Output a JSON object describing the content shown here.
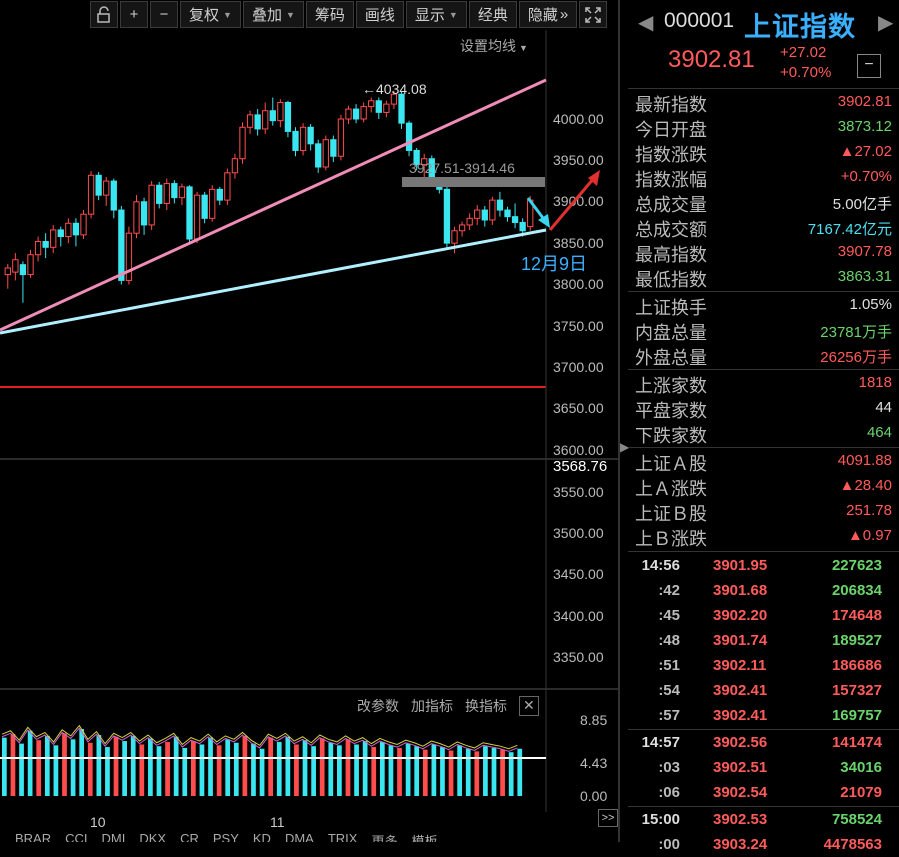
{
  "toolbar": {
    "lock_icon": "lock-icon",
    "plus": "+",
    "minus": "−",
    "restore_right": "复权",
    "overlay": "叠加",
    "chips": "筹码",
    "draw_line": "画线",
    "display": "显示",
    "classic": "经典",
    "hide": "隐藏",
    "hide_arrows": "»",
    "fullscreen_icon": "fullscreen-icon"
  },
  "chart": {
    "settings_ma": "设置均线",
    "peak_label": "←4034.08",
    "range_label": "3927.51-3914.46",
    "date_annotation": "12月9日",
    "price_ticks": [
      "4000.00",
      "3950.00",
      "3900.00",
      "3850.00",
      "3800.00",
      "3750.00",
      "3700.00",
      "3650.00",
      "3600.00",
      "3568.76",
      "3550.00",
      "3500.00",
      "3450.00",
      "3400.00",
      "3350.00"
    ],
    "month_labels": [
      "10",
      "11"
    ],
    "indicator_ticks": [
      "8.85",
      "4.43",
      "0.00"
    ],
    "indicator_buttons": [
      "改参数",
      "加指标",
      "换指标"
    ],
    "indicator_close": "✕",
    "bottom_tabs": [
      "BRAR",
      "CCI",
      "DMI",
      "DKX",
      "CR",
      "PSY",
      "KD",
      "DMA",
      "TRIX",
      "更多",
      "模板"
    ],
    "scroll_arrow": ">>"
  },
  "chart_data": {
    "type": "candlestick",
    "ylim": [
      3330,
      4060
    ],
    "candles": [
      [
        3812,
        3820,
        3795,
        3825
      ],
      [
        3815,
        3830,
        3805,
        3838
      ],
      [
        3824,
        3812,
        3778,
        3828
      ],
      [
        3812,
        3836,
        3808,
        3842
      ],
      [
        3836,
        3852,
        3828,
        3858
      ],
      [
        3852,
        3845,
        3832,
        3862
      ],
      [
        3845,
        3866,
        3838,
        3872
      ],
      [
        3866,
        3858,
        3846,
        3870
      ],
      [
        3858,
        3874,
        3850,
        3880
      ],
      [
        3874,
        3860,
        3846,
        3880
      ],
      [
        3860,
        3885,
        3855,
        3890
      ],
      [
        3885,
        3932,
        3880,
        3937
      ],
      [
        3932,
        3908,
        3902,
        3936
      ],
      [
        3908,
        3925,
        3895,
        3930
      ],
      [
        3925,
        3890,
        3880,
        3928
      ],
      [
        3890,
        3805,
        3800,
        3895
      ],
      [
        3805,
        3862,
        3800,
        3870
      ],
      [
        3862,
        3900,
        3856,
        3908
      ],
      [
        3900,
        3872,
        3860,
        3905
      ],
      [
        3872,
        3920,
        3866,
        3925
      ],
      [
        3920,
        3898,
        3892,
        3924
      ],
      [
        3898,
        3922,
        3890,
        3928
      ],
      [
        3922,
        3905,
        3898,
        3926
      ],
      [
        3905,
        3918,
        3896,
        3922
      ],
      [
        3918,
        3855,
        3850,
        3920
      ],
      [
        3855,
        3908,
        3850,
        3912
      ],
      [
        3908,
        3880,
        3874,
        3912
      ],
      [
        3880,
        3915,
        3876,
        3920
      ],
      [
        3915,
        3902,
        3896,
        3918
      ],
      [
        3902,
        3935,
        3896,
        3940
      ],
      [
        3935,
        3952,
        3928,
        3958
      ],
      [
        3952,
        3990,
        3946,
        3996
      ],
      [
        3990,
        4005,
        3982,
        4010
      ],
      [
        4005,
        3988,
        3980,
        4012
      ],
      [
        3988,
        4010,
        3982,
        4020
      ],
      [
        4010,
        3998,
        3992,
        4026
      ],
      [
        3998,
        4020,
        3990,
        4024
      ],
      [
        4020,
        3985,
        3978,
        4022
      ],
      [
        3985,
        3962,
        3955,
        3990
      ],
      [
        3962,
        3990,
        3956,
        3995
      ],
      [
        3990,
        3970,
        3962,
        3994
      ],
      [
        3970,
        3942,
        3935,
        3975
      ],
      [
        3942,
        3975,
        3938,
        3980
      ],
      [
        3975,
        3955,
        3948,
        3980
      ],
      [
        3955,
        4000,
        3950,
        4005
      ],
      [
        4000,
        4012,
        3994,
        4016
      ],
      [
        4012,
        4000,
        3995,
        4018
      ],
      [
        4000,
        4015,
        3996,
        4020
      ],
      [
        4015,
        4022,
        4008,
        4026
      ],
      [
        4022,
        4008,
        4000,
        4026
      ],
      [
        4008,
        4018,
        4002,
        4022
      ],
      [
        4018,
        4030,
        4012,
        4034
      ],
      [
        4030,
        3995,
        3988,
        4034
      ],
      [
        3995,
        3962,
        3955,
        3998
      ],
      [
        3962,
        3945,
        3938,
        3965
      ],
      [
        3945,
        3952,
        3930,
        3958
      ],
      [
        3952,
        3928,
        3920,
        3956
      ],
      [
        3928,
        3915,
        3910,
        3930
      ],
      [
        3915,
        3850,
        3842,
        3918
      ],
      [
        3850,
        3865,
        3838,
        3870
      ],
      [
        3865,
        3872,
        3858,
        3876
      ],
      [
        3872,
        3880,
        3866,
        3886
      ],
      [
        3880,
        3890,
        3872,
        3896
      ],
      [
        3890,
        3878,
        3870,
        3895
      ],
      [
        3878,
        3902,
        3872,
        3906
      ],
      [
        3902,
        3890,
        3882,
        3912
      ],
      [
        3890,
        3882,
        3876,
        3894
      ],
      [
        3882,
        3875,
        3868,
        3898
      ],
      [
        3875,
        3865,
        3858,
        3880
      ],
      [
        3870,
        3902,
        3865,
        3907
      ]
    ],
    "indicator_values": [
      6.8,
      7.2,
      6.1,
      7.6,
      6.5,
      7.0,
      5.9,
      7.3,
      6.6,
      7.8,
      6.2,
      7.1,
      5.7,
      6.9,
      6.4,
      7.0,
      6.0,
      6.7,
      5.8,
      6.3,
      6.9,
      5.6,
      6.4,
      6.0,
      6.8,
      5.9,
      6.6,
      6.2,
      7.0,
      6.1,
      5.5,
      6.8,
      6.3,
      6.9,
      6.0,
      6.5,
      5.8,
      6.7,
      6.2,
      5.9,
      6.6,
      6.0,
      6.4,
      5.7,
      6.3,
      5.9,
      5.6,
      6.1,
      5.8,
      5.4,
      6.0,
      5.7,
      5.3,
      5.9,
      5.5,
      5.2,
      5.8,
      5.6,
      5.4,
      5.1,
      5.5
    ]
  },
  "panel": {
    "code": "000001",
    "name": "上证指数",
    "price": "3902.81",
    "change": "+27.02",
    "change_pct": "+0.70%",
    "minus_btn": "−",
    "rows1": [
      {
        "label": "最新指数",
        "value": "3902.81",
        "cls": "red"
      },
      {
        "label": "今日开盘",
        "value": "3873.12",
        "cls": "green"
      },
      {
        "label": "指数涨跌",
        "value": "▲27.02",
        "cls": "red"
      },
      {
        "label": "指数涨幅",
        "value": "+0.70%",
        "cls": "red"
      },
      {
        "label": "总成交量",
        "value": "5.00亿手",
        "cls": "white"
      },
      {
        "label": "总成交额",
        "value": "7167.42亿元",
        "cls": "cyan"
      },
      {
        "label": "最高指数",
        "value": "3907.78",
        "cls": "red"
      },
      {
        "label": "最低指数",
        "value": "3863.31",
        "cls": "green"
      }
    ],
    "rows2": [
      {
        "label": "上证换手",
        "value": "1.05%",
        "cls": "white"
      },
      {
        "label": "内盘总量",
        "value": "23781万手",
        "cls": "green"
      },
      {
        "label": "外盘总量",
        "value": "26256万手",
        "cls": "red"
      }
    ],
    "rows3": [
      {
        "label": "上涨家数",
        "value": "1818",
        "cls": "red"
      },
      {
        "label": "平盘家数",
        "value": "44",
        "cls": "white"
      },
      {
        "label": "下跌家数",
        "value": "464",
        "cls": "green"
      }
    ],
    "rows4": [
      {
        "label": "上证Ａ股",
        "value": "4091.88",
        "cls": "red"
      },
      {
        "label": "上Ａ涨跌",
        "value": "▲28.40",
        "cls": "red"
      },
      {
        "label": "上证Ｂ股",
        "value": "251.78",
        "cls": "red"
      },
      {
        "label": "上Ｂ涨跌",
        "value": "▲0.97",
        "cls": "red"
      }
    ],
    "ticks": [
      {
        "time": "14:56",
        "price": "3901.95",
        "vol": "227623",
        "cls": "green"
      },
      {
        "time": ":42",
        "price": "3901.68",
        "vol": "206834",
        "cls": "green"
      },
      {
        "time": ":45",
        "price": "3902.20",
        "vol": "174648",
        "cls": "red"
      },
      {
        "time": ":48",
        "price": "3901.74",
        "vol": "189527",
        "cls": "green"
      },
      {
        "time": ":51",
        "price": "3902.11",
        "vol": "186686",
        "cls": "red"
      },
      {
        "time": ":54",
        "price": "3902.41",
        "vol": "157327",
        "cls": "red"
      },
      {
        "time": ":57",
        "price": "3902.41",
        "vol": "169757",
        "cls": "green"
      },
      {
        "time": "14:57",
        "price": "3902.56",
        "vol": "141474",
        "cls": "red"
      },
      {
        "time": ":03",
        "price": "3902.51",
        "vol": "34016",
        "cls": "green"
      },
      {
        "time": ":06",
        "price": "3902.54",
        "vol": "21079",
        "cls": "red"
      },
      {
        "time": "15:00",
        "price": "3902.53",
        "vol": "758524",
        "cls": "green"
      },
      {
        "time": ":00",
        "price": "3903.24",
        "vol": "4478563",
        "cls": "red"
      }
    ]
  }
}
